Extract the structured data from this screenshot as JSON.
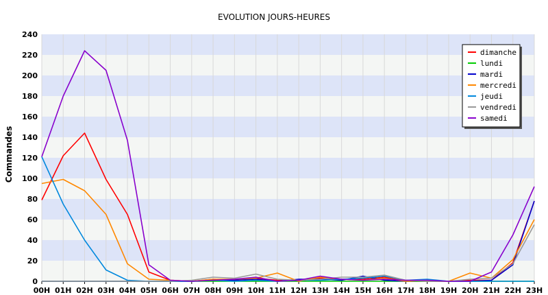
{
  "chart_data": {
    "type": "line",
    "title": "EVOLUTION JOURS-HEURES",
    "ylabel": "Commandes",
    "xlabel": "",
    "ylim": [
      0,
      240
    ],
    "yticks": [
      0,
      20,
      40,
      60,
      80,
      100,
      120,
      140,
      160,
      180,
      200,
      220,
      240
    ],
    "grid": true,
    "legend_position": "top-right",
    "categories": [
      "00H",
      "01H",
      "02H",
      "03H",
      "04H",
      "05H",
      "06H",
      "07H",
      "08H",
      "09H",
      "10H",
      "11H",
      "12H",
      "13H",
      "14H",
      "15H",
      "16H",
      "17H",
      "18H",
      "19H",
      "20H",
      "21H",
      "22H",
      "23H"
    ],
    "series": [
      {
        "name": "dimanche",
        "color": "#ff0000",
        "values": [
          79,
          122,
          144,
          99,
          65,
          9,
          1,
          0,
          2,
          1,
          3,
          1,
          0,
          3,
          2,
          2,
          4,
          0,
          0,
          0,
          1,
          1,
          18,
          78
        ]
      },
      {
        "name": "lundi",
        "color": "#00cc00",
        "values": [
          0,
          0,
          0,
          0,
          0,
          0,
          0,
          0,
          0,
          0,
          0,
          0,
          0,
          0,
          0,
          0,
          0,
          0,
          0,
          0,
          0,
          0,
          0,
          0
        ]
      },
      {
        "name": "mardi",
        "color": "#0000cc",
        "values": [
          0,
          0,
          0,
          0,
          0,
          0,
          0,
          0,
          1,
          1,
          2,
          0,
          2,
          2,
          1,
          5,
          1,
          0,
          1,
          0,
          0,
          1,
          16,
          78
        ]
      },
      {
        "name": "mercredi",
        "color": "#ff8800",
        "values": [
          95,
          99,
          88,
          65,
          17,
          2,
          1,
          0,
          2,
          2,
          3,
          8,
          0,
          4,
          2,
          1,
          3,
          0,
          1,
          0,
          8,
          3,
          21,
          60
        ]
      },
      {
        "name": "jeudi",
        "color": "#0088dd",
        "values": [
          121,
          75,
          40,
          11,
          1,
          0,
          0,
          0,
          1,
          0,
          1,
          0,
          1,
          1,
          2,
          3,
          5,
          1,
          2,
          0,
          0,
          0,
          0,
          0
        ]
      },
      {
        "name": "vendredi",
        "color": "#999999",
        "values": [
          0,
          0,
          0,
          0,
          0,
          0,
          0,
          1,
          4,
          3,
          7,
          2,
          1,
          2,
          4,
          4,
          6,
          1,
          0,
          0,
          2,
          3,
          17,
          55
        ]
      },
      {
        "name": "samedi",
        "color": "#8800cc",
        "values": [
          121,
          180,
          224,
          205,
          137,
          16,
          1,
          0,
          1,
          2,
          4,
          0,
          1,
          5,
          2,
          1,
          2,
          1,
          1,
          0,
          0,
          9,
          45,
          92
        ]
      }
    ]
  }
}
